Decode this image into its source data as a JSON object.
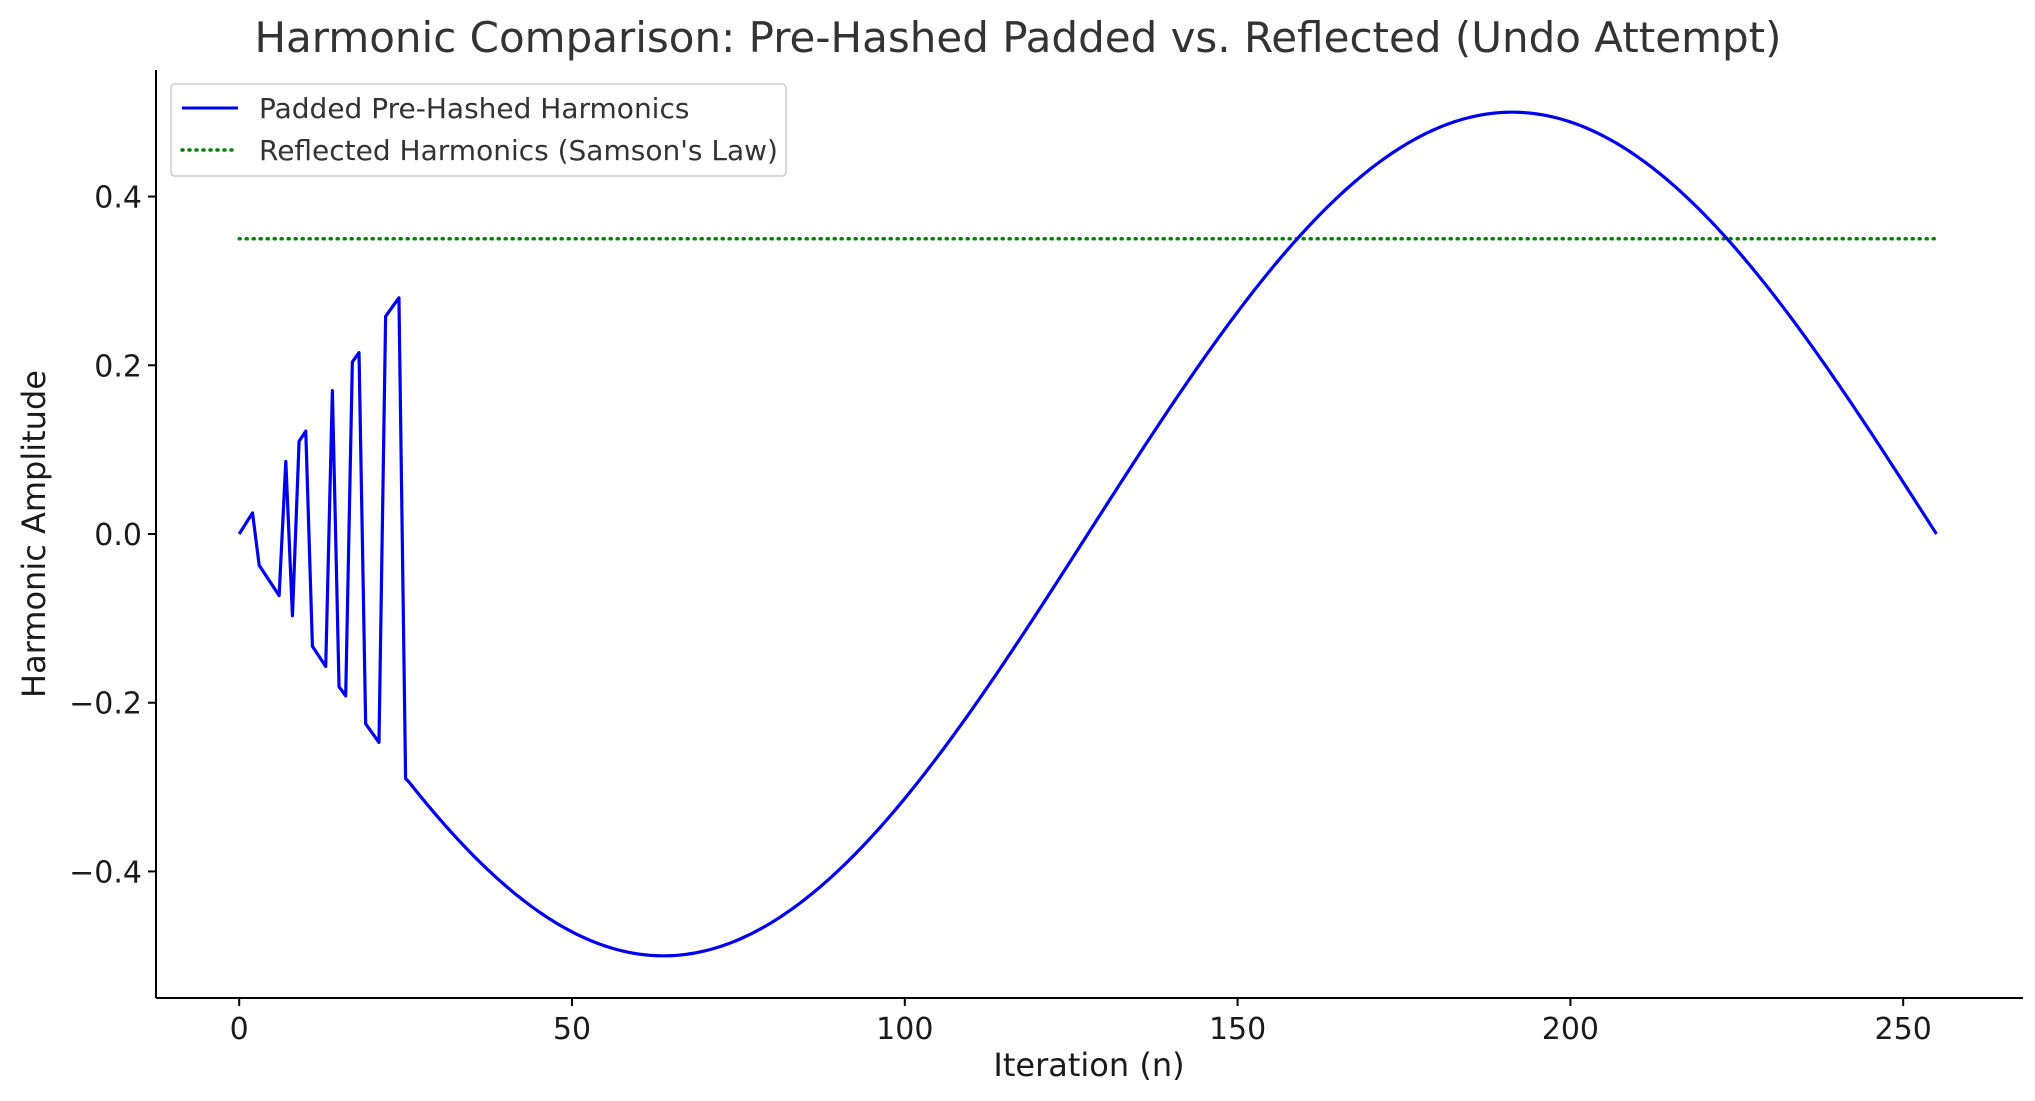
{
  "chart_data": {
    "type": "line",
    "title": "Harmonic Comparison: Pre-Hashed Padded vs. Reflected (Undo Attempt)",
    "xlabel": "Iteration (n)",
    "ylabel": "Harmonic Amplitude",
    "xlim": [
      -12.5,
      268
    ],
    "ylim": [
      -0.55,
      0.55
    ],
    "xticks": [
      0,
      50,
      100,
      150,
      200,
      250
    ],
    "yticks": [
      -0.4,
      -0.2,
      0.0,
      0.2,
      0.4
    ],
    "xtick_labels": [
      "0",
      "50",
      "100",
      "150",
      "200",
      "250"
    ],
    "ytick_labels": [
      "−0.4",
      "−0.2",
      "0.0",
      "0.2",
      "0.4"
    ],
    "grid": false,
    "legend_position": "top-left",
    "series": [
      {
        "name": "Padded Pre-Hashed Harmonics",
        "color": "#0000ee",
        "style": "solid",
        "head_x": [
          0,
          2,
          3,
          6,
          7,
          8,
          9,
          10,
          11,
          13,
          14,
          15,
          16,
          17,
          18,
          19,
          21,
          22,
          24,
          25
        ],
        "head_y": [
          0.0,
          0.025,
          -0.037,
          -0.073,
          0.086,
          -0.097,
          0.11,
          0.122,
          -0.133,
          -0.157,
          0.17,
          -0.181,
          -0.192,
          0.204,
          0.215,
          -0.225,
          -0.247,
          0.258,
          0.28,
          -0.29
        ],
        "tail_formula": "y = -0.5 * sin(2*pi*n/255)",
        "tail_x_range": [
          25,
          255
        ]
      },
      {
        "name": "Reflected Harmonics (Samson's Law)",
        "color": "#008000",
        "style": "dotted",
        "x": [
          0,
          255
        ],
        "y": [
          0.35,
          0.35
        ]
      }
    ]
  }
}
